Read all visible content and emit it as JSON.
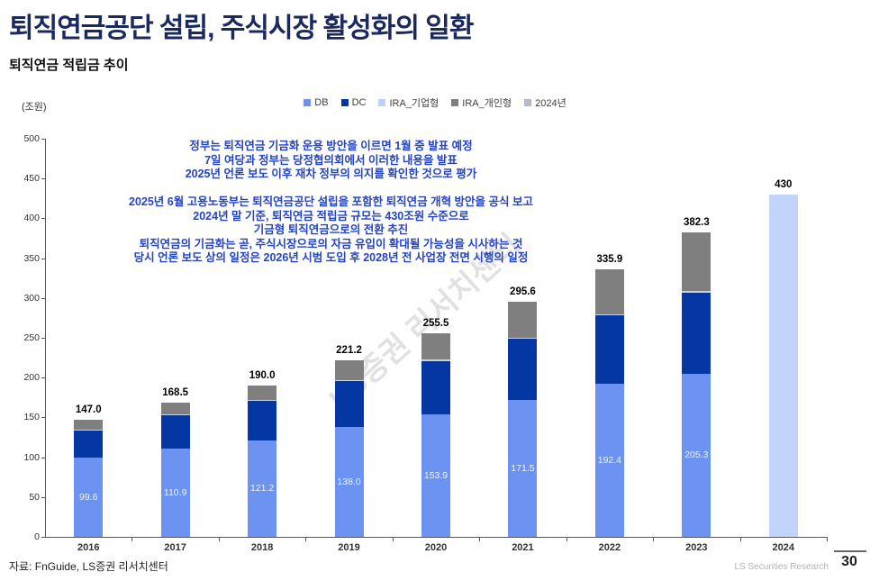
{
  "page": {
    "title": "퇴직연금공단 설립, 주식시장 활성화의 일환",
    "section_title": "퇴직연금 적립금 추이",
    "unit_label": "(조원)",
    "watermark": "LS증권 리서치센터",
    "source": "자료: FnGuide, LS증권 리서치센터",
    "footer_brand": "LS Securities  Research",
    "page_number": "30",
    "title_color": "#1b2a5e",
    "annotation_color": "#2443c5"
  },
  "annotations": {
    "block1": [
      "정부는 퇴직연금 기금화 운용 방안을 이르면 1월 중 발표 예정",
      "7일 여당과 정부는 당정협의회에서 이러한 내용을 발표",
      "2025년 언론 보도 이후 재차 정부의 의지를 확인한 것으로 평가"
    ],
    "block2": [
      "2025년 6월 고용노동부는 퇴직연금공단 설립을 포함한 퇴직연금 개혁 방안을 공식 보고",
      "2024년 말 기준, 퇴직연금 적립금 규모는 430조원 수준으로",
      "기금형 퇴직연금으로의 전환 추진",
      "퇴직연금의 기금화는 곧, 주식시장으로의 자금 유입이 확대될 가능성을 시사하는 것",
      "당시 언론 보도 상의 일정은 2026년 시범 도입 후 2028년 전 사업장 전면 시행의 일정"
    ]
  },
  "chart_data": {
    "type": "bar",
    "stacked": true,
    "title": "퇴직연금 적립금 추이",
    "ylabel": "(조원)",
    "ylim": [
      0,
      500
    ],
    "ytick_step": 50,
    "grid": false,
    "legend_position": "top",
    "categories": [
      "2016",
      "2017",
      "2018",
      "2019",
      "2020",
      "2021",
      "2022",
      "2023",
      "2024"
    ],
    "series": [
      {
        "name": "DB",
        "color": "#6d93f2",
        "values": [
          99.6,
          110.9,
          121.2,
          138.0,
          153.9,
          171.5,
          192.4,
          205.3,
          null
        ]
      },
      {
        "name": "DC",
        "color": "#0437a3",
        "values": [
          34.2,
          42.3,
          49.7,
          57.8,
          67.2,
          77.6,
          86.0,
          101.4,
          null
        ]
      },
      {
        "name": "IRA_기업형",
        "color": "#bcd2f7",
        "values": [
          0.8,
          0.9,
          1.0,
          1.1,
          1.2,
          1.4,
          1.5,
          1.6,
          null
        ]
      },
      {
        "name": "IRA_개인형",
        "color": "#7f7f7f",
        "values": [
          12.4,
          14.4,
          18.1,
          24.3,
          33.2,
          45.1,
          56.0,
          74.0,
          null
        ]
      },
      {
        "name": "2024년",
        "color": "#c3d4fa",
        "legend_color": "#b3bcc9",
        "values": [
          null,
          null,
          null,
          null,
          null,
          null,
          null,
          null,
          430
        ]
      }
    ],
    "total_labels": [
      "147.0",
      "168.5",
      "190.0",
      "221.2",
      "255.5",
      "295.6",
      "335.9",
      "382.3",
      "430"
    ],
    "db_segment_labels": [
      "99.6",
      "110.9",
      "121.2",
      "138.0",
      "153.9",
      "171.5",
      "192.4",
      "205.3",
      ""
    ]
  }
}
